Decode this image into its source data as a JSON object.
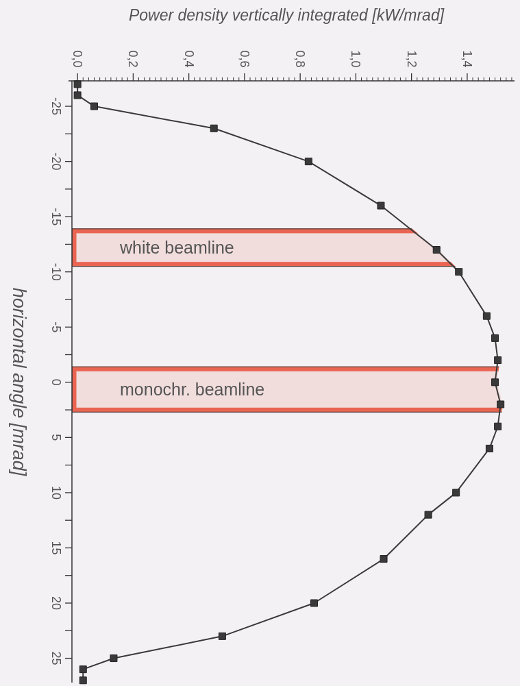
{
  "chart_data": {
    "type": "line",
    "xlabel": "Power density vertically integrated [kW/mrad]",
    "ylabel": "horizontal angle [mrad]",
    "series": [
      {
        "color": "#3a3a3a",
        "x": [
          0.0,
          0.0,
          0.06,
          0.49,
          0.83,
          1.09,
          1.29,
          1.37,
          1.47,
          1.5,
          1.51,
          1.5,
          1.52,
          1.51,
          1.48,
          1.36,
          1.26,
          1.1,
          0.85,
          0.52,
          0.13,
          0.02,
          0.02
        ],
        "values": [
          -27,
          -26,
          -25,
          -23,
          -20,
          -16,
          -12,
          -10,
          -6,
          -4,
          -2,
          0,
          2,
          4,
          6,
          10,
          12,
          16,
          20,
          23,
          25,
          26,
          27
        ]
      }
    ],
    "marker": "square",
    "line_style": "solid",
    "grid": false,
    "legend": false,
    "xlim": [
      -0.02,
      1.57
    ],
    "xticks": [
      {
        "value": 0,
        "label": "0,0"
      },
      {
        "value": 0.2,
        "label": "0,2"
      },
      {
        "value": 0.4,
        "label": "0,4"
      },
      {
        "value": 0.6,
        "label": "0,6"
      },
      {
        "value": 0.8,
        "label": "0,8"
      },
      {
        "value": 1.0,
        "label": "1,0"
      },
      {
        "value": 1.2,
        "label": "1,2"
      },
      {
        "value": 1.4,
        "label": "1,4"
      }
    ],
    "ylim": [
      27.2,
      -27.3
    ],
    "yticks": [
      -25,
      {
        "value": -22.5,
        "label": null
      },
      -20,
      {
        "value": -17.5,
        "label": null
      },
      -15,
      {
        "value": -12.5,
        "label": null
      },
      -10,
      {
        "value": -7.5,
        "label": null
      },
      -5,
      {
        "value": -2.5,
        "label": null
      },
      0,
      {
        "value": 2.5,
        "label": null
      },
      5,
      {
        "value": 7.5,
        "label": null
      },
      10,
      {
        "value": 12.5,
        "label": null
      },
      15,
      {
        "value": 17.5,
        "label": null
      },
      20,
      {
        "value": 22.5,
        "label": null
      },
      25
    ],
    "bands": [
      {
        "axis": "y",
        "from": -13.9,
        "to": -10.5,
        "label": "white beamline",
        "color": "#e8503a"
      },
      {
        "axis": "y",
        "from": -1.4,
        "to": 2.7,
        "label": "monochr. beamline",
        "color": "#e8503a"
      }
    ]
  }
}
